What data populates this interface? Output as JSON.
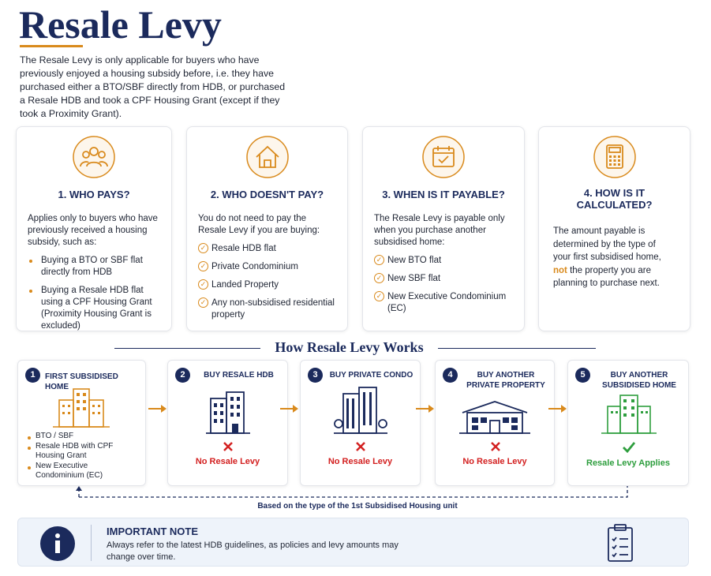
{
  "header": {
    "title": "Resale Levy",
    "intro": "The Resale Levy is only applicable for buyers who have previously enjoyed a housing subsidy before, i.e. they have purchased either a BTO/SBF directly from HDB, or purchased a Resale HDB and took a CPF Housing Grant (except if they took a Proximity Grant)."
  },
  "cards": [
    {
      "title": "1. WHO PAYS?",
      "text": "Applies only to buyers who have previously received a housing subsidy, such as:",
      "items": [
        "Buying a BTO or SBF flat directly from HDB",
        "Buying a Resale HDB flat using a CPF Housing Grant (Proximity Housing Grant is excluded)"
      ]
    },
    {
      "title": "2. WHO DOESN'T PAY?",
      "text": "You do not need to pay the Resale Levy if you are buying:",
      "items": [
        "Resale HDB flat",
        "Private Condominium",
        "Landed Property",
        "Any non-subsidised residential property"
      ]
    },
    {
      "title": "3. WHEN IS IT PAYABLE?",
      "text": "The Resale Levy is payable only when you purchase another subsidised home:",
      "items": [
        "New BTO flat",
        "New SBF flat",
        "New Executive Condominium (EC)"
      ]
    },
    {
      "title": "4. HOW IS IT CALCULATED?",
      "text_before": "The amount payable is determined by the type of your first subsidised home,",
      "emphasis": "not",
      "text_after": "the property you are planning to purchase next."
    }
  ],
  "process": {
    "heading": "How Resale Levy Works",
    "steps": [
      {
        "number": "1",
        "title": "FIRST SUBSIDISED HOME",
        "items": [
          "BTO / SBF",
          "Resale HDB with CPF Housing Grant",
          "New Executive Condominium (EC)"
        ]
      },
      {
        "number": "2",
        "title": "BUY RESALE HDB",
        "result": "No Resale Levy"
      },
      {
        "number": "3",
        "title": "BUY PRIVATE CONDO",
        "result": "No Resale Levy"
      },
      {
        "number": "4",
        "title": "BUY ANOTHER PRIVATE PROPERTY",
        "result": "No Resale Levy"
      },
      {
        "number": "5",
        "title": "BUY ANOTHER SUBSIDISED HOME",
        "result": "Resale Levy Applies"
      }
    ],
    "footnote": "Based on the type of the 1st Subsidised Housing unit"
  },
  "note": {
    "title": "IMPORTANT NOTE",
    "text": "Always refer to the latest HDB guidelines, as policies and levy amounts may change over time."
  }
}
